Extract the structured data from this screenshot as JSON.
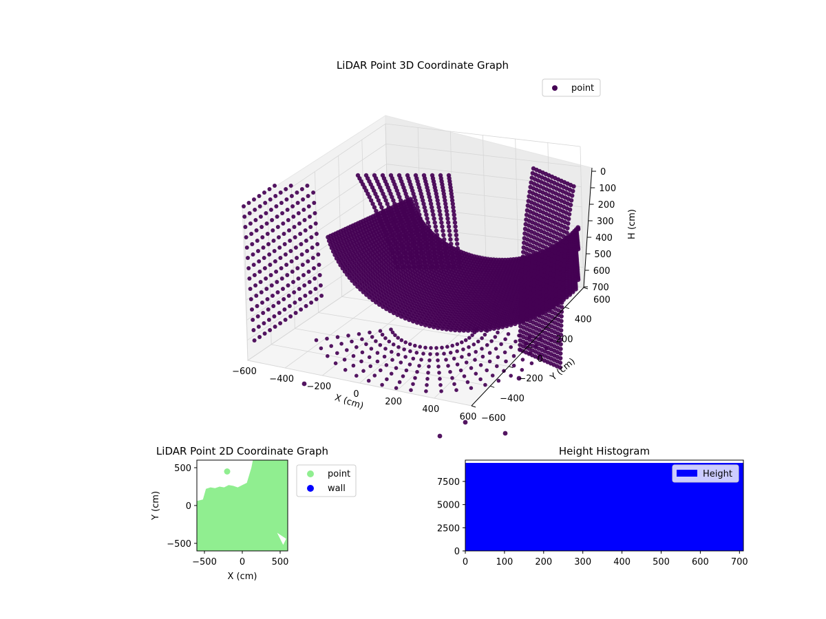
{
  "chart_data": [
    {
      "type": "scatter",
      "projection": "3d",
      "title": "LiDAR Point 3D Coordinate Graph",
      "xlabel": "X (cm)",
      "ylabel": "Y (cm)",
      "zlabel": "H (cm)",
      "xticks": [
        -600,
        -400,
        -200,
        0,
        200,
        400,
        600
      ],
      "yticks": [
        -600,
        -400,
        -200,
        0,
        200,
        400,
        600
      ],
      "zticks": [
        0,
        100,
        200,
        300,
        400,
        500,
        600,
        700
      ],
      "xticklabels": [
        "−600",
        "−400",
        "−200",
        "0",
        "200",
        "400",
        "600"
      ],
      "yticklabels": [
        "−600",
        "−400",
        "−200",
        "0",
        "200",
        "400",
        "600"
      ],
      "zticklabels": [
        "0",
        "100",
        "200",
        "300",
        "400",
        "500",
        "600",
        "700"
      ],
      "xlim": [
        -600,
        600
      ],
      "ylim": [
        -600,
        600
      ],
      "zlim": [
        0,
        700
      ],
      "z_inverted": true,
      "grid": true,
      "legend": "top-right",
      "series": [
        {
          "name": "point",
          "color": "#440154"
        }
      ]
    },
    {
      "type": "scatter",
      "title": "LiDAR Point 2D Coordinate Graph",
      "xlabel": "X (cm)",
      "ylabel": "Y (cm)",
      "xticks": [
        -500,
        0,
        500
      ],
      "yticks": [
        -500,
        0,
        500
      ],
      "xticklabels": [
        "−500",
        "0",
        "500"
      ],
      "yticklabels": [
        "−500",
        "0",
        "500"
      ],
      "xlim": [
        -600,
        600
      ],
      "ylim": [
        -600,
        600
      ],
      "legend": "outside-right",
      "series": [
        {
          "name": "point",
          "color": "#90ee90"
        },
        {
          "name": "wall",
          "color": "#0000ff"
        }
      ]
    },
    {
      "type": "bar",
      "title": "Height Histogram",
      "xticks": [
        0,
        100,
        200,
        300,
        400,
        500,
        600,
        700
      ],
      "yticks": [
        0,
        2500,
        5000,
        7500
      ],
      "xticklabels": [
        "0",
        "100",
        "200",
        "300",
        "400",
        "500",
        "600",
        "700"
      ],
      "yticklabels": [
        "0",
        "2500",
        "5000",
        "7500"
      ],
      "xlim": [
        0,
        710
      ],
      "ylim": [
        0,
        9800
      ],
      "bins": [
        0,
        710
      ],
      "counts": [
        9500
      ],
      "legend": "top-right",
      "series": [
        {
          "name": "Height",
          "color": "#0000ff"
        }
      ]
    }
  ]
}
